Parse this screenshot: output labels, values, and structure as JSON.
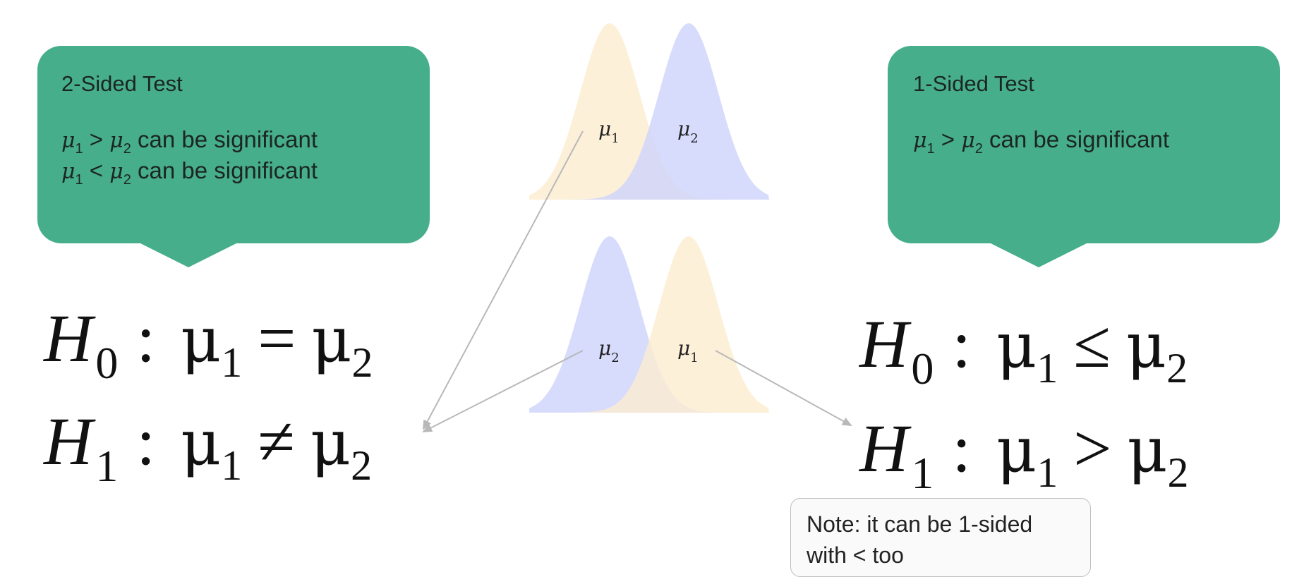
{
  "left_callout": {
    "title": "2-Sided Test",
    "line1": {
      "a": "μ",
      "a_sub": "1",
      "op": ">",
      "b": "μ",
      "b_sub": "2",
      "text": "can be significant"
    },
    "line2": {
      "a": "μ",
      "a_sub": "1",
      "op": "<",
      "b": "μ",
      "b_sub": "2",
      "text": "can be significant"
    }
  },
  "right_callout": {
    "title": "1-Sided Test",
    "line1": {
      "a": "μ",
      "a_sub": "1",
      "op": ">",
      "b": "μ",
      "b_sub": "2",
      "text": "can be significant"
    }
  },
  "hypotheses_left": {
    "h0": {
      "H": "H",
      "sub": "0",
      "colon": ":",
      "a": "μ",
      "a_sub": "1",
      "op": "=",
      "b": "μ",
      "b_sub": "2"
    },
    "h1": {
      "H": "H",
      "sub": "1",
      "colon": ":",
      "a": "μ",
      "a_sub": "1",
      "op": "≠",
      "b": "μ",
      "b_sub": "2"
    }
  },
  "hypotheses_right": {
    "h0": {
      "H": "H",
      "sub": "0",
      "colon": ":",
      "a": "μ",
      "a_sub": "1",
      "op": "≤",
      "b": "μ",
      "b_sub": "2"
    },
    "h1": {
      "H": "H",
      "sub": "1",
      "colon": ":",
      "a": "μ",
      "a_sub": "1",
      "op": ">",
      "b": "μ",
      "b_sub": "2"
    }
  },
  "distributions": {
    "top": {
      "left_label": "μ",
      "left_sub": "1",
      "right_label": "μ",
      "right_sub": "2",
      "left_color": "#fdeccf",
      "right_color": "#cdd3fb"
    },
    "bottom": {
      "left_label": "μ",
      "left_sub": "2",
      "right_label": "μ",
      "right_sub": "1",
      "left_color": "#cdd3fb",
      "right_color": "#fdeccf"
    }
  },
  "note": {
    "line1": "Note: it can be 1-sided",
    "line2": "with < too"
  },
  "colors": {
    "callout": "#47ae8c",
    "arrow": "#b8b8b8"
  }
}
